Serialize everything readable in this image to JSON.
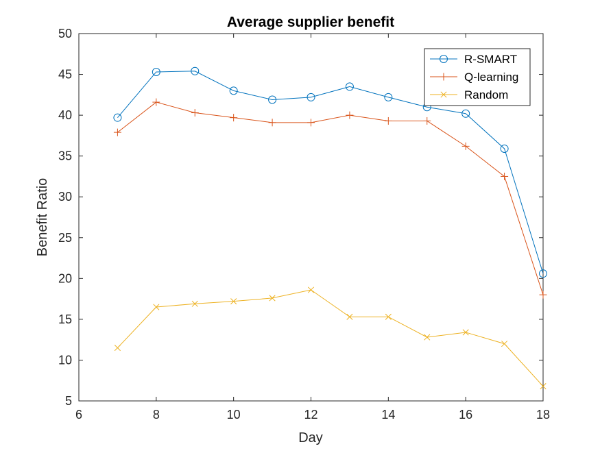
{
  "chart_data": {
    "type": "line",
    "title": "Average supplier benefit",
    "xlabel": "Day",
    "ylabel": "Benefit Ratio",
    "xlim": [
      6,
      18
    ],
    "ylim": [
      5,
      50
    ],
    "xticks": [
      6,
      8,
      10,
      12,
      14,
      16,
      18
    ],
    "yticks": [
      5,
      10,
      15,
      20,
      25,
      30,
      35,
      40,
      45,
      50
    ],
    "x": [
      7,
      8,
      9,
      10,
      11,
      12,
      13,
      14,
      15,
      16,
      17,
      18
    ],
    "grid": false,
    "legend_position": "top-right",
    "series": [
      {
        "name": "R-SMART",
        "color": "#0072BD",
        "marker": "circle",
        "values": [
          39.7,
          45.3,
          45.4,
          43.0,
          41.9,
          42.2,
          43.5,
          42.2,
          41.0,
          40.2,
          35.9,
          20.6
        ]
      },
      {
        "name": "Q-learning",
        "color": "#D95319",
        "marker": "plus",
        "values": [
          37.9,
          41.6,
          40.3,
          39.7,
          39.1,
          39.1,
          40.0,
          39.3,
          39.3,
          36.2,
          32.5,
          18.0
        ]
      },
      {
        "name": "Random",
        "color": "#EDB120",
        "marker": "x",
        "values": [
          11.5,
          16.5,
          16.9,
          17.2,
          17.6,
          18.6,
          15.3,
          15.3,
          12.8,
          13.4,
          12.0,
          6.8
        ]
      }
    ]
  }
}
